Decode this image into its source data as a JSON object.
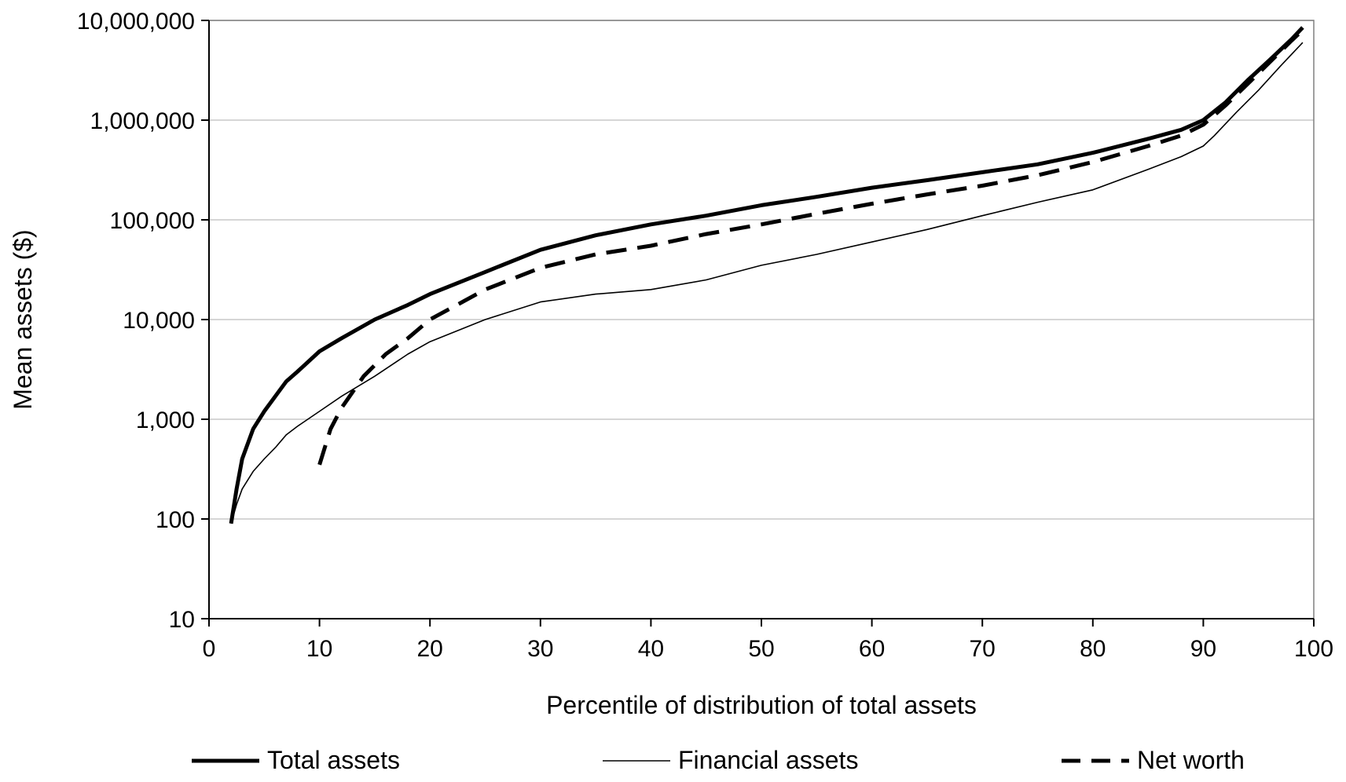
{
  "chart_data": {
    "type": "line",
    "title": "",
    "xlabel": "Percentile of distribution of total assets",
    "ylabel": "Mean assets ($)",
    "xlim": [
      0,
      100
    ],
    "ylim": [
      10,
      10000000
    ],
    "y_scale": "log",
    "grid": "horizontal",
    "legend_position": "bottom",
    "x_ticks": [
      0,
      10,
      20,
      30,
      40,
      50,
      60,
      70,
      80,
      90,
      100
    ],
    "x_tick_labels": [
      "0",
      "10",
      "20",
      "30",
      "40",
      "50",
      "60",
      "70",
      "80",
      "90",
      "100"
    ],
    "y_ticks": [
      10,
      100,
      1000,
      10000,
      100000,
      1000000,
      10000000
    ],
    "y_tick_labels": [
      "10",
      "100",
      "1,000",
      "10,000",
      "100,000",
      "1,000,000",
      "10,000,000"
    ],
    "series": [
      {
        "name": "Total assets",
        "style": "thick-solid",
        "color": "#000000",
        "x": [
          2,
          2.5,
          3,
          4,
          5,
          6,
          7,
          8,
          10,
          12,
          15,
          18,
          20,
          25,
          30,
          35,
          40,
          45,
          50,
          55,
          60,
          65,
          70,
          75,
          80,
          85,
          88,
          90,
          92,
          94,
          96,
          98,
          99
        ],
        "y": [
          90,
          200,
          400,
          800,
          1200,
          1700,
          2400,
          3000,
          4800,
          6500,
          10000,
          14000,
          18000,
          30000,
          50000,
          70000,
          90000,
          110000,
          140000,
          170000,
          210000,
          250000,
          300000,
          360000,
          470000,
          650000,
          800000,
          1000000,
          1500000,
          2500000,
          4000000,
          6500000,
          8500000
        ]
      },
      {
        "name": "Financial assets",
        "style": "thin-solid",
        "color": "#000000",
        "x": [
          2,
          2.5,
          3,
          4,
          5,
          6,
          7,
          8,
          10,
          12,
          15,
          18,
          20,
          25,
          30,
          35,
          40,
          45,
          50,
          55,
          60,
          65,
          70,
          75,
          80,
          85,
          88,
          90,
          91,
          93,
          95,
          97,
          99
        ],
        "y": [
          90,
          140,
          200,
          300,
          400,
          520,
          700,
          850,
          1200,
          1700,
          2700,
          4500,
          6000,
          10000,
          15000,
          18000,
          20000,
          25000,
          35000,
          45000,
          60000,
          80000,
          110000,
          150000,
          200000,
          320000,
          430000,
          550000,
          700000,
          1200000,
          2000000,
          3500000,
          6000000
        ]
      },
      {
        "name": "Net worth",
        "style": "thick-dashed",
        "color": "#000000",
        "x": [
          10,
          11,
          12,
          14,
          16,
          18,
          20,
          25,
          30,
          35,
          40,
          45,
          50,
          55,
          60,
          65,
          70,
          75,
          80,
          85,
          88,
          90,
          92,
          94,
          96,
          98,
          99
        ],
        "y": [
          350,
          800,
          1300,
          2700,
          4500,
          6500,
          10000,
          20000,
          33000,
          45000,
          55000,
          72000,
          90000,
          115000,
          145000,
          180000,
          220000,
          280000,
          380000,
          550000,
          700000,
          900000,
          1400000,
          2300000,
          3800000,
          6300000,
          8000000
        ]
      }
    ]
  }
}
